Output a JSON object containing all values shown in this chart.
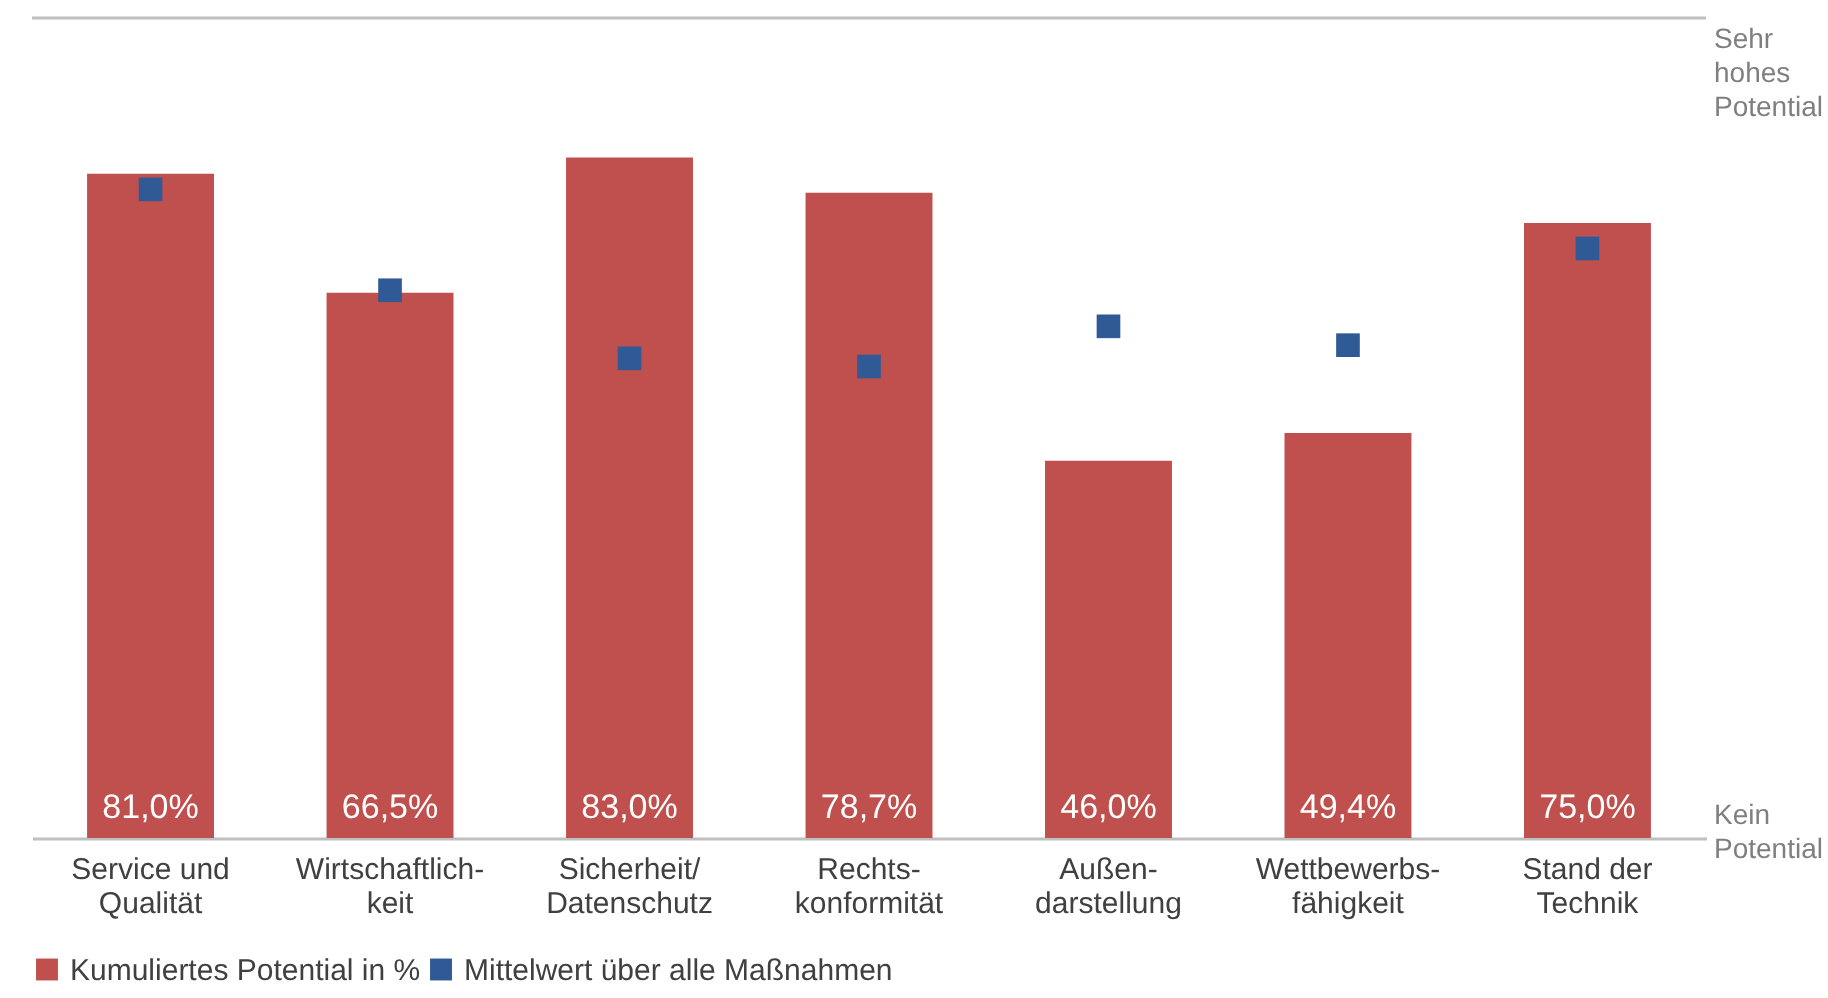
{
  "chart_data": {
    "type": "bar",
    "categories": [
      "Service und\nQualität",
      "Wirtschaftlich-\nkeit",
      "Sicherheit/\nDatenschutz",
      "Rechts-\nkonformität",
      "Außen-\ndarstellung",
      "Wettbewerbs-\nfähigkeit",
      "Stand der\nTechnik"
    ],
    "series": [
      {
        "name": "Kumuliertes Potential in %",
        "color": "#c0504d",
        "values": [
          81.0,
          66.5,
          83.0,
          78.7,
          46.0,
          49.4,
          75.0
        ],
        "value_labels": [
          "81,0%",
          "66,5%",
          "83,0%",
          "78,7%",
          "46,0%",
          "49,4%",
          "75,0%"
        ]
      },
      {
        "name": "Mittelwert über alle Maßnahmen",
        "type": "scatter",
        "marker": "square",
        "color": "#2f5a95",
        "values": [
          79.1,
          66.8,
          58.5,
          57.5,
          62.4,
          60.1,
          71.9
        ]
      }
    ],
    "ylim": [
      0,
      100
    ],
    "annotations": [
      "Sehr hohes Potential",
      "Kein Potential"
    ],
    "legend": "bottom"
  }
}
